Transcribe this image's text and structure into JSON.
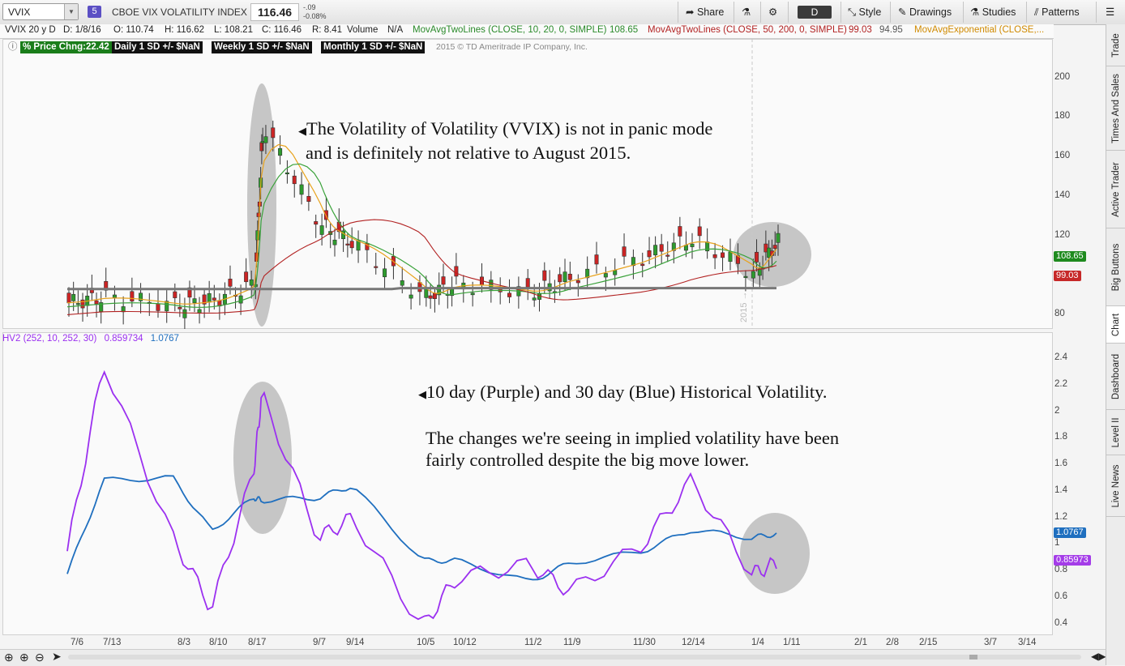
{
  "toolbar": {
    "symbol": "VVIX",
    "badge": "5",
    "symbol_name": "CBOE VIX VOLATILITY INDEX",
    "last_price": "116.46",
    "net_change": "-.09",
    "pct_change": "-0.08%",
    "share_label": "Share",
    "aggregation": "D",
    "style_label": "Style",
    "drawings_label": "Drawings",
    "studies_label": "Studies",
    "patterns_label": "Patterns"
  },
  "infobar": {
    "timeframe": "VVIX 20 y D",
    "date": "D: 1/8/16",
    "open": "O: 110.74",
    "high": "H: 116.62",
    "low": "L: 108.21",
    "close": "C: 116.46",
    "range": "R: 8.41",
    "volume_label": "Volume",
    "volume_value": "N/A",
    "ma1_label": "MovAvgTwoLines (CLOSE, 10, 20, 0, SIMPLE)",
    "ma1_value": "108.65",
    "ma2_label": "MovAvgTwoLines (CLOSE, 50, 200, 0, SIMPLE)",
    "ma2_value": "99.03",
    "ma2_value2": "94.95",
    "ma3_label": "MovAvgExponential (CLOSE,..."
  },
  "labels": {
    "pct_price": "% Price Chng:22.42",
    "daily_sd": "Daily 1 SD +/- $NaN",
    "weekly_sd": "Weekly 1 SD +/- $NaN",
    "monthly_sd": "Monthly 1 SD +/- $NaN",
    "copyright": "2015 © TD Ameritrade IP Company, Inc.",
    "year_marker": "2015 →"
  },
  "annotations": {
    "upper_line1": "The Volatility of Volatility (VVIX) is not in panic mode",
    "upper_line2": "and is definitely not relative to August 2015.",
    "lower_line1": "10 day (Purple) and 30 day (Blue) Historical Volatility.",
    "lower_line2": "The changes we're seeing in implied volatility have been",
    "lower_line3": "fairly controlled despite the big move lower."
  },
  "hv_study": {
    "label": "HV2 (252, 10, 252, 30)",
    "value1": "0.859734",
    "value2": "1.0767"
  },
  "price_axis": {
    "ticks": [
      "200",
      "180",
      "160",
      "140",
      "120",
      "80"
    ],
    "ma_fast_label": "108.65",
    "ma_slow_label": "99.03"
  },
  "hv_axis": {
    "ticks": [
      "2.4",
      "2.2",
      "2",
      "1.8",
      "1.6",
      "1.4",
      "1.2",
      "1",
      "0.8",
      "0.6",
      "0.4"
    ],
    "blue_label": "1.0767",
    "purple_label": "0.85973"
  },
  "xaxis": {
    "ticks": [
      "7/6",
      "7/13",
      "8/3",
      "8/10",
      "8/17",
      "9/7",
      "9/14",
      "10/5",
      "10/12",
      "11/2",
      "11/9",
      "11/30",
      "12/14",
      "1/4",
      "1/11",
      "2/1",
      "2/8",
      "2/15",
      "3/7",
      "3/14"
    ]
  },
  "sidebar": {
    "tabs": [
      "Trade",
      "Times And Sales",
      "Active Trader",
      "Big Buttons",
      "Chart",
      "Dashboard",
      "Level II",
      "Live News"
    ],
    "active": "Chart"
  },
  "colors": {
    "up_candle": "#2e9b2e",
    "down_candle": "#cc2424",
    "ma_fast": "#e8a21b",
    "ma_green": "#3aa23a",
    "ma_red": "#b22222",
    "ma_gray": "#777777",
    "hv_purple": "#9b30f0",
    "hv_blue": "#1f6fbf"
  },
  "chart_data": {
    "type": "line",
    "series": [
      {
        "name": "VVIX close",
        "x": [
          "7/6",
          "7/13",
          "8/3",
          "8/10",
          "8/17",
          "8/24",
          "9/7",
          "9/14",
          "10/5",
          "10/12",
          "11/2",
          "11/9",
          "11/30",
          "12/14",
          "1/4",
          "1/8"
        ],
        "values": [
          85,
          88,
          84,
          86,
          95,
          175,
          125,
          115,
          88,
          95,
          90,
          98,
          108,
          118,
          100,
          116.46
        ]
      },
      {
        "name": "HV10",
        "x": [
          "7/6",
          "7/13",
          "8/3",
          "8/10",
          "8/17",
          "8/24",
          "9/7",
          "9/14",
          "10/5",
          "10/12",
          "11/2",
          "11/9",
          "11/30",
          "12/14",
          "1/4",
          "1/8"
        ],
        "values": [
          0.95,
          2.35,
          1.05,
          0.52,
          1.55,
          2.12,
          1.05,
          1.2,
          0.38,
          0.75,
          0.85,
          0.65,
          1.0,
          1.48,
          0.78,
          0.86
        ]
      },
      {
        "name": "HV30",
        "x": [
          "7/6",
          "7/13",
          "8/3",
          "8/10",
          "8/17",
          "8/24",
          "9/7",
          "9/14",
          "10/5",
          "10/12",
          "11/2",
          "11/9",
          "11/30",
          "12/14",
          "1/4",
          "1/8"
        ],
        "values": [
          0.78,
          1.48,
          1.5,
          1.1,
          1.35,
          1.33,
          1.35,
          1.44,
          0.88,
          0.88,
          0.72,
          0.86,
          0.95,
          1.11,
          1.05,
          1.08
        ]
      }
    ]
  }
}
